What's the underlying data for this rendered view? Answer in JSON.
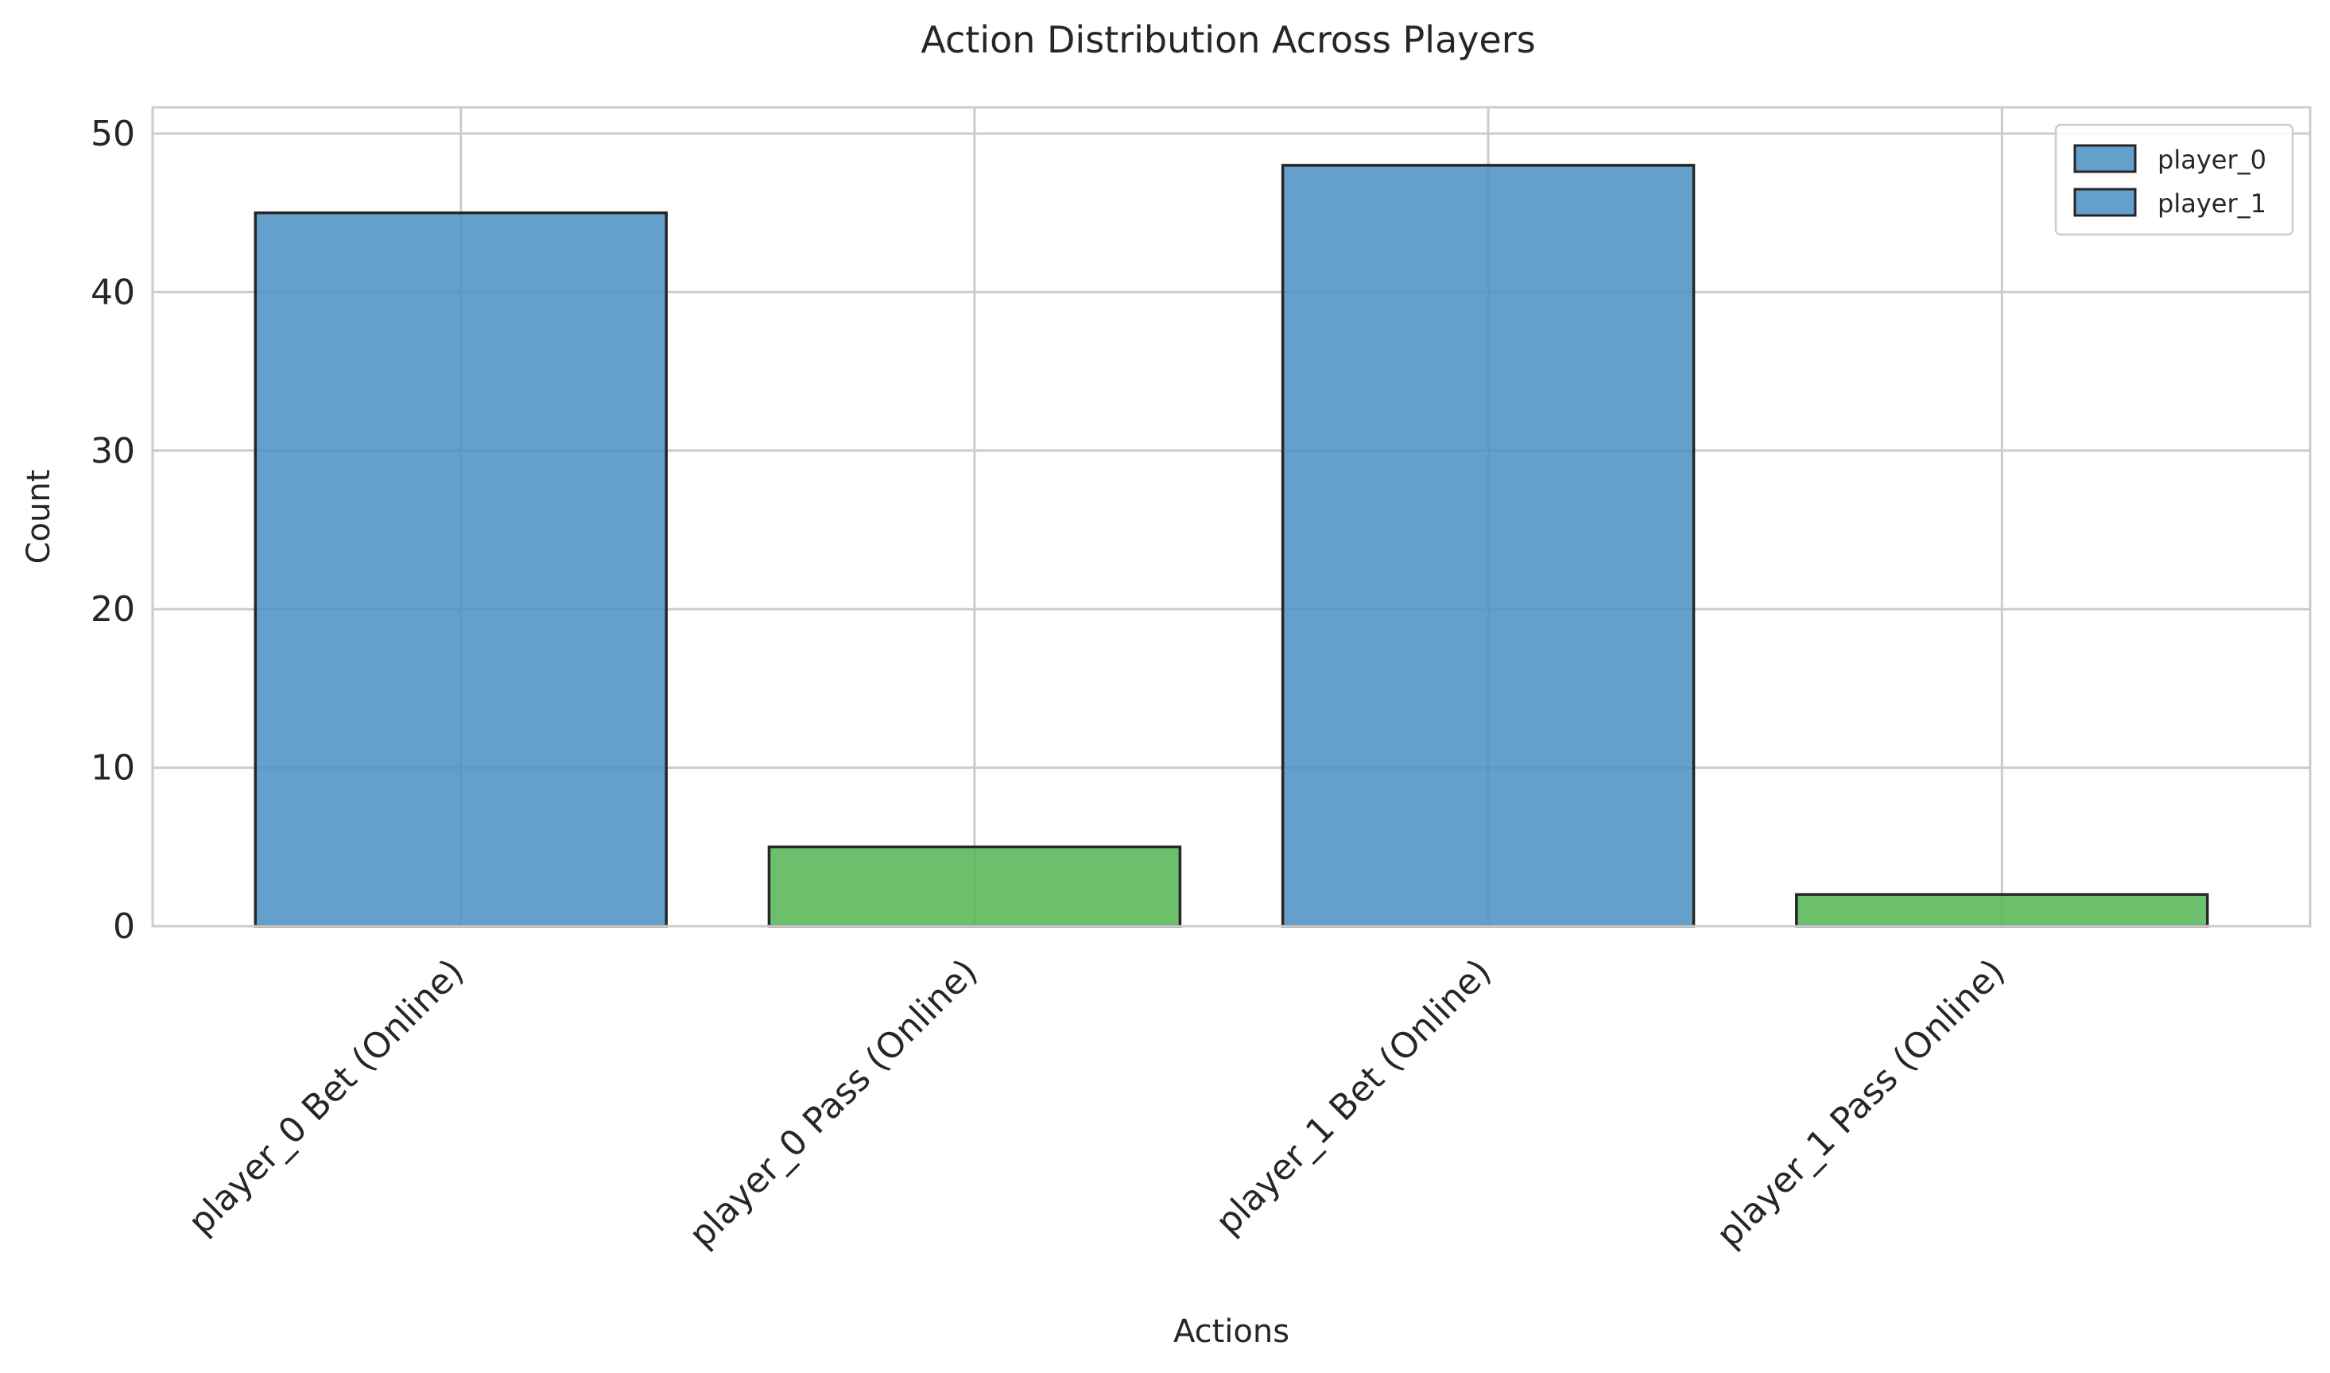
{
  "chart_data": {
    "type": "bar",
    "title": "Action Distribution Across Players",
    "xlabel": "Actions",
    "ylabel": "Count",
    "categories": [
      "player_0 Bet (Online)",
      "player_0 Pass (Online)",
      "player_1 Bet (Online)",
      "player_1 Pass (Online)"
    ],
    "values": [
      45,
      5,
      48,
      2
    ],
    "bar_colors": [
      "#4a8ec2",
      "#52b552",
      "#4a8ec2",
      "#52b552"
    ],
    "ylim": [
      0,
      50
    ],
    "yticks": [
      0,
      10,
      20,
      30,
      40,
      50
    ],
    "grid": true,
    "legend": {
      "placement": "top-right",
      "entries": [
        {
          "label": "player_0",
          "color": "#4a8ec2"
        },
        {
          "label": "player_1",
          "color": "#4a8ec2"
        }
      ]
    }
  }
}
